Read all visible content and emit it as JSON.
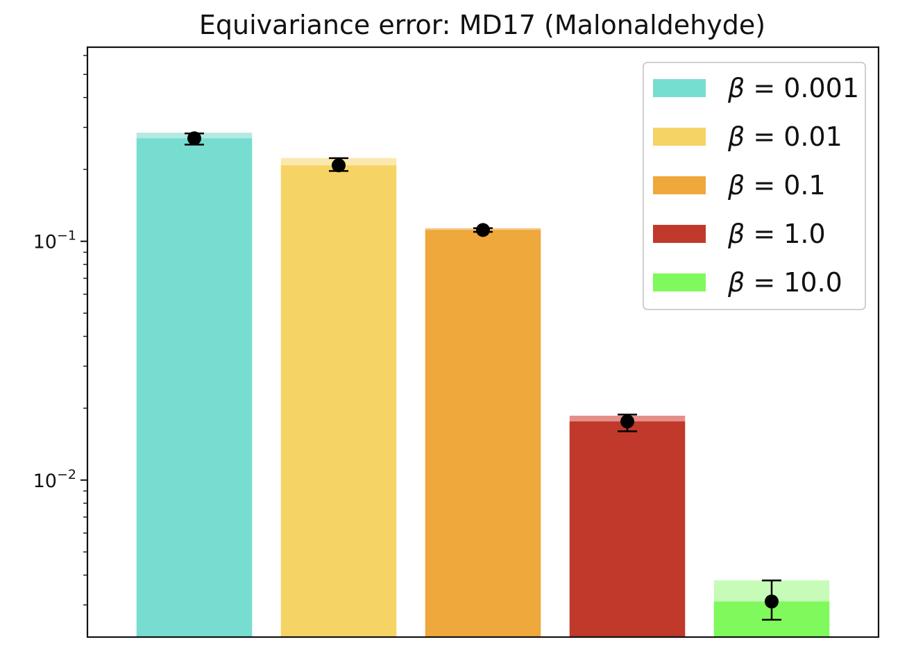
{
  "chart_data": {
    "type": "bar",
    "title": "Equivariance error: MD17 (Malonaldehyde)",
    "yscale": "log",
    "ylim": [
      0.0022,
      0.65
    ],
    "yticks": [
      {
        "value": 0.1,
        "base": "10",
        "exp": "−1"
      },
      {
        "value": 0.01,
        "base": "10",
        "exp": "−2"
      }
    ],
    "xlabel": "",
    "ylabel": "",
    "legend_position": "top-right",
    "legend_symbol": "β = ",
    "series": [
      {
        "name": "0.001",
        "color": "#77ddd1",
        "light_color": "#b3e9e3",
        "mean": 0.27,
        "upper_bar": 0.285,
        "err_low": 0.254,
        "err_high": 0.283
      },
      {
        "name": "0.01",
        "color": "#f6d365",
        "light_color": "#fbe8ad",
        "mean": 0.208,
        "upper_bar": 0.223,
        "err_low": 0.197,
        "err_high": 0.223
      },
      {
        "name": "0.1",
        "color": "#efa83b",
        "light_color": "#f3c78a",
        "mean": 0.1115,
        "upper_bar": 0.1135,
        "err_low": 0.1095,
        "err_high": 0.1135
      },
      {
        "name": "1.0",
        "color": "#c0392b",
        "light_color": "#e38e88",
        "mean": 0.0176,
        "upper_bar": 0.0186,
        "err_low": 0.016,
        "err_high": 0.0188
      },
      {
        "name": "10.0",
        "color": "#80f95c",
        "light_color": "#c6fbb8",
        "mean": 0.0031,
        "upper_bar": 0.0038,
        "err_low": 0.0026,
        "err_high": 0.0038
      }
    ]
  }
}
